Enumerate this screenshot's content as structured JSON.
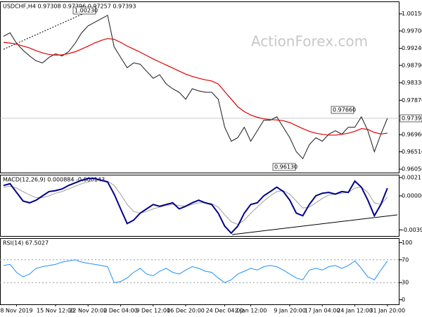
{
  "watermark": "ActionForex.com",
  "annotations": [
    "1.00230",
    "0.97660",
    "0.96130"
  ],
  "chart_data": [
    {
      "type": "line",
      "title": "USDCHF,H4 0.97308 0.97396 0.97257 0.97393",
      "ylim": [
        0.9596,
        1.0048
      ],
      "yticks": [
        {
          "value": 1.0015,
          "label": "1.00150"
        },
        {
          "value": 0.997,
          "label": "0.99700"
        },
        {
          "value": 0.9924,
          "label": "0.99240"
        },
        {
          "value": 0.9879,
          "label": "0.98790"
        },
        {
          "value": 0.9833,
          "label": "0.98330"
        },
        {
          "value": 0.9787,
          "label": "0.97870"
        },
        {
          "value": 0.9696,
          "label": "0.96960"
        },
        {
          "value": 0.9651,
          "label": "0.96510"
        },
        {
          "value": 0.9605,
          "label": "0.96050"
        }
      ],
      "current_price": 0.97393,
      "series": [
        {
          "color": "#1a1a1a",
          "values": [
            0.99558,
            0.99651,
            0.99374,
            0.99189,
            0.99041,
            0.98912,
            0.98857,
            0.99004,
            0.99097,
            0.99041,
            0.99152,
            0.99374,
            0.99651,
            0.99835,
            0.99928,
            1.0002,
            1.00113,
            0.99281,
            0.99004,
            0.98727,
            0.98857,
            0.9882,
            0.98635,
            0.9845,
            0.98543,
            0.98302,
            0.98173,
            0.98081,
            0.97896,
            0.98173,
            0.98118,
            0.98081,
            0.98081,
            0.97896,
            0.97157,
            0.96788,
            0.9688,
            0.97157,
            0.96788,
            0.97065,
            0.97342,
            0.97342,
            0.97434,
            0.97157,
            0.9688,
            0.96511,
            0.96326,
            0.96696,
            0.9688,
            0.96788,
            0.96973,
            0.97065,
            0.96973,
            0.97157,
            0.97157,
            0.97434,
            0.97065,
            0.96511,
            0.96973,
            0.97393
          ]
        },
        {
          "color": "#e00000",
          "values": [
            0.994,
            0.9938,
            0.9935,
            0.993,
            0.9925,
            0.9918,
            0.9912,
            0.9908,
            0.9906,
            0.9907,
            0.991,
            0.9915,
            0.9922,
            0.993,
            0.9938,
            0.9945,
            0.995,
            0.9948,
            0.994,
            0.993,
            0.9922,
            0.9914,
            0.9905,
            0.9896,
            0.9888,
            0.988,
            0.9872,
            0.9864,
            0.9856,
            0.985,
            0.9845,
            0.9841,
            0.9838,
            0.983,
            0.981,
            0.979,
            0.977,
            0.9757,
            0.9748,
            0.9742,
            0.9738,
            0.9736,
            0.9735,
            0.9733,
            0.9728,
            0.972,
            0.9712,
            0.9705,
            0.97,
            0.9697,
            0.9695,
            0.9695,
            0.9697,
            0.97,
            0.9705,
            0.9712,
            0.971,
            0.9702,
            0.9698,
            0.97
          ]
        }
      ]
    },
    {
      "type": "line",
      "title": "MACD(12,26,9) 0.000884 -0.000143",
      "ylim": [
        -0.00463,
        0.00244
      ],
      "yticks": [
        0.002113,
        {
          "value": 0,
          "label": "0.000000"
        },
        -0.003922
      ],
      "series": [
        {
          "color": "#a0a0a0",
          "values": [
            0.001,
            0.0011,
            0.0009,
            0.0005,
            0.0001,
            -0.0002,
            -0.0002,
            0,
            0.0003,
            0.0005,
            0.0008,
            0.0011,
            0.0014,
            0.0016,
            0.0018,
            0.0018,
            0.0017,
            0.0012,
            0.0002,
            -0.001,
            -0.0018,
            -0.002,
            -0.0018,
            -0.0015,
            -0.0013,
            -0.0011,
            -0.001,
            -0.0011,
            -0.0012,
            -0.001,
            -0.0008,
            -0.0008,
            -0.0009,
            -0.0013,
            -0.0022,
            -0.003,
            -0.0033,
            -0.0028,
            -0.002,
            -0.0013,
            -0.0006,
            0,
            0.0005,
            0.0006,
            0.0002,
            -0.0006,
            -0.0014,
            -0.0013,
            -0.0008,
            -0.0003,
            0.0001,
            0.0002,
            0.0003,
            0.0004,
            0.0009,
            0.001,
            0.0004,
            -0.0008,
            -0.001,
            -0.000143
          ]
        },
        {
          "color": "#00008b",
          "values": [
            0.0012,
            0.0014,
            0.0004,
            -0.0006,
            -0.0008,
            -0.0005,
            0,
            0.0005,
            0.0006,
            0.0008,
            0.0012,
            0.0015,
            0.0018,
            0.002,
            0.002,
            0.0018,
            0.0016,
            0.0002,
            -0.0015,
            -0.0032,
            -0.0028,
            -0.002,
            -0.0015,
            -0.001,
            -0.0012,
            -0.001,
            -0.0008,
            -0.0015,
            -0.0012,
            -0.0008,
            -0.0005,
            -0.0008,
            -0.001,
            -0.002,
            -0.0035,
            -0.0043,
            -0.0035,
            -0.002,
            -0.001,
            -0.0008,
            0,
            0.0005,
            0.001,
            0.0005,
            -0.0005,
            -0.002,
            -0.0023,
            -0.001,
            0,
            0.0003,
            0.0004,
            0.0002,
            0.0005,
            0.0004,
            0.0017,
            0.001,
            -0.0005,
            -0.0023,
            -0.001,
            0.000884
          ]
        }
      ]
    },
    {
      "type": "line",
      "title": "RSI(14) 67.5027",
      "ylim": [
        -8,
        108
      ],
      "yticks": [
        100,
        70,
        30,
        0
      ],
      "levels": [
        70,
        30
      ],
      "categories": [
        null,
        null,
        "8 Nov 2019",
        null,
        null,
        null,
        null,
        null,
        "15 Nov 12:00",
        null,
        null,
        null,
        null,
        "22 Nov 20:00",
        null,
        null,
        null,
        null,
        "2 Dec 04:00",
        null,
        null,
        null,
        null,
        "9 Dec 12:00",
        null,
        null,
        null,
        null,
        "16 Dec 20:00",
        null,
        null,
        null,
        null,
        null,
        "24 Dec 04:00",
        null,
        null,
        null,
        "2 Jan 12:00",
        null,
        null,
        null,
        null,
        null,
        "9 Jan 20:00",
        null,
        null,
        null,
        null,
        "17 Jan 04:00",
        null,
        null,
        null,
        null,
        "24 Jan 12:00",
        null,
        null,
        null,
        null,
        "31 Jan 20:00"
      ],
      "series": [
        {
          "color": "#1e90ff",
          "values": [
            60,
            62,
            48,
            40,
            45,
            55,
            58,
            60,
            62,
            66,
            68,
            70,
            66,
            64,
            62,
            60,
            58,
            30,
            32,
            38,
            48,
            55,
            45,
            42,
            50,
            55,
            48,
            45,
            52,
            58,
            55,
            50,
            48,
            38,
            30,
            35,
            45,
            50,
            55,
            52,
            58,
            60,
            58,
            52,
            45,
            38,
            35,
            52,
            55,
            52,
            58,
            60,
            55,
            60,
            68,
            55,
            40,
            35,
            52,
            67.5027
          ]
        }
      ]
    }
  ]
}
